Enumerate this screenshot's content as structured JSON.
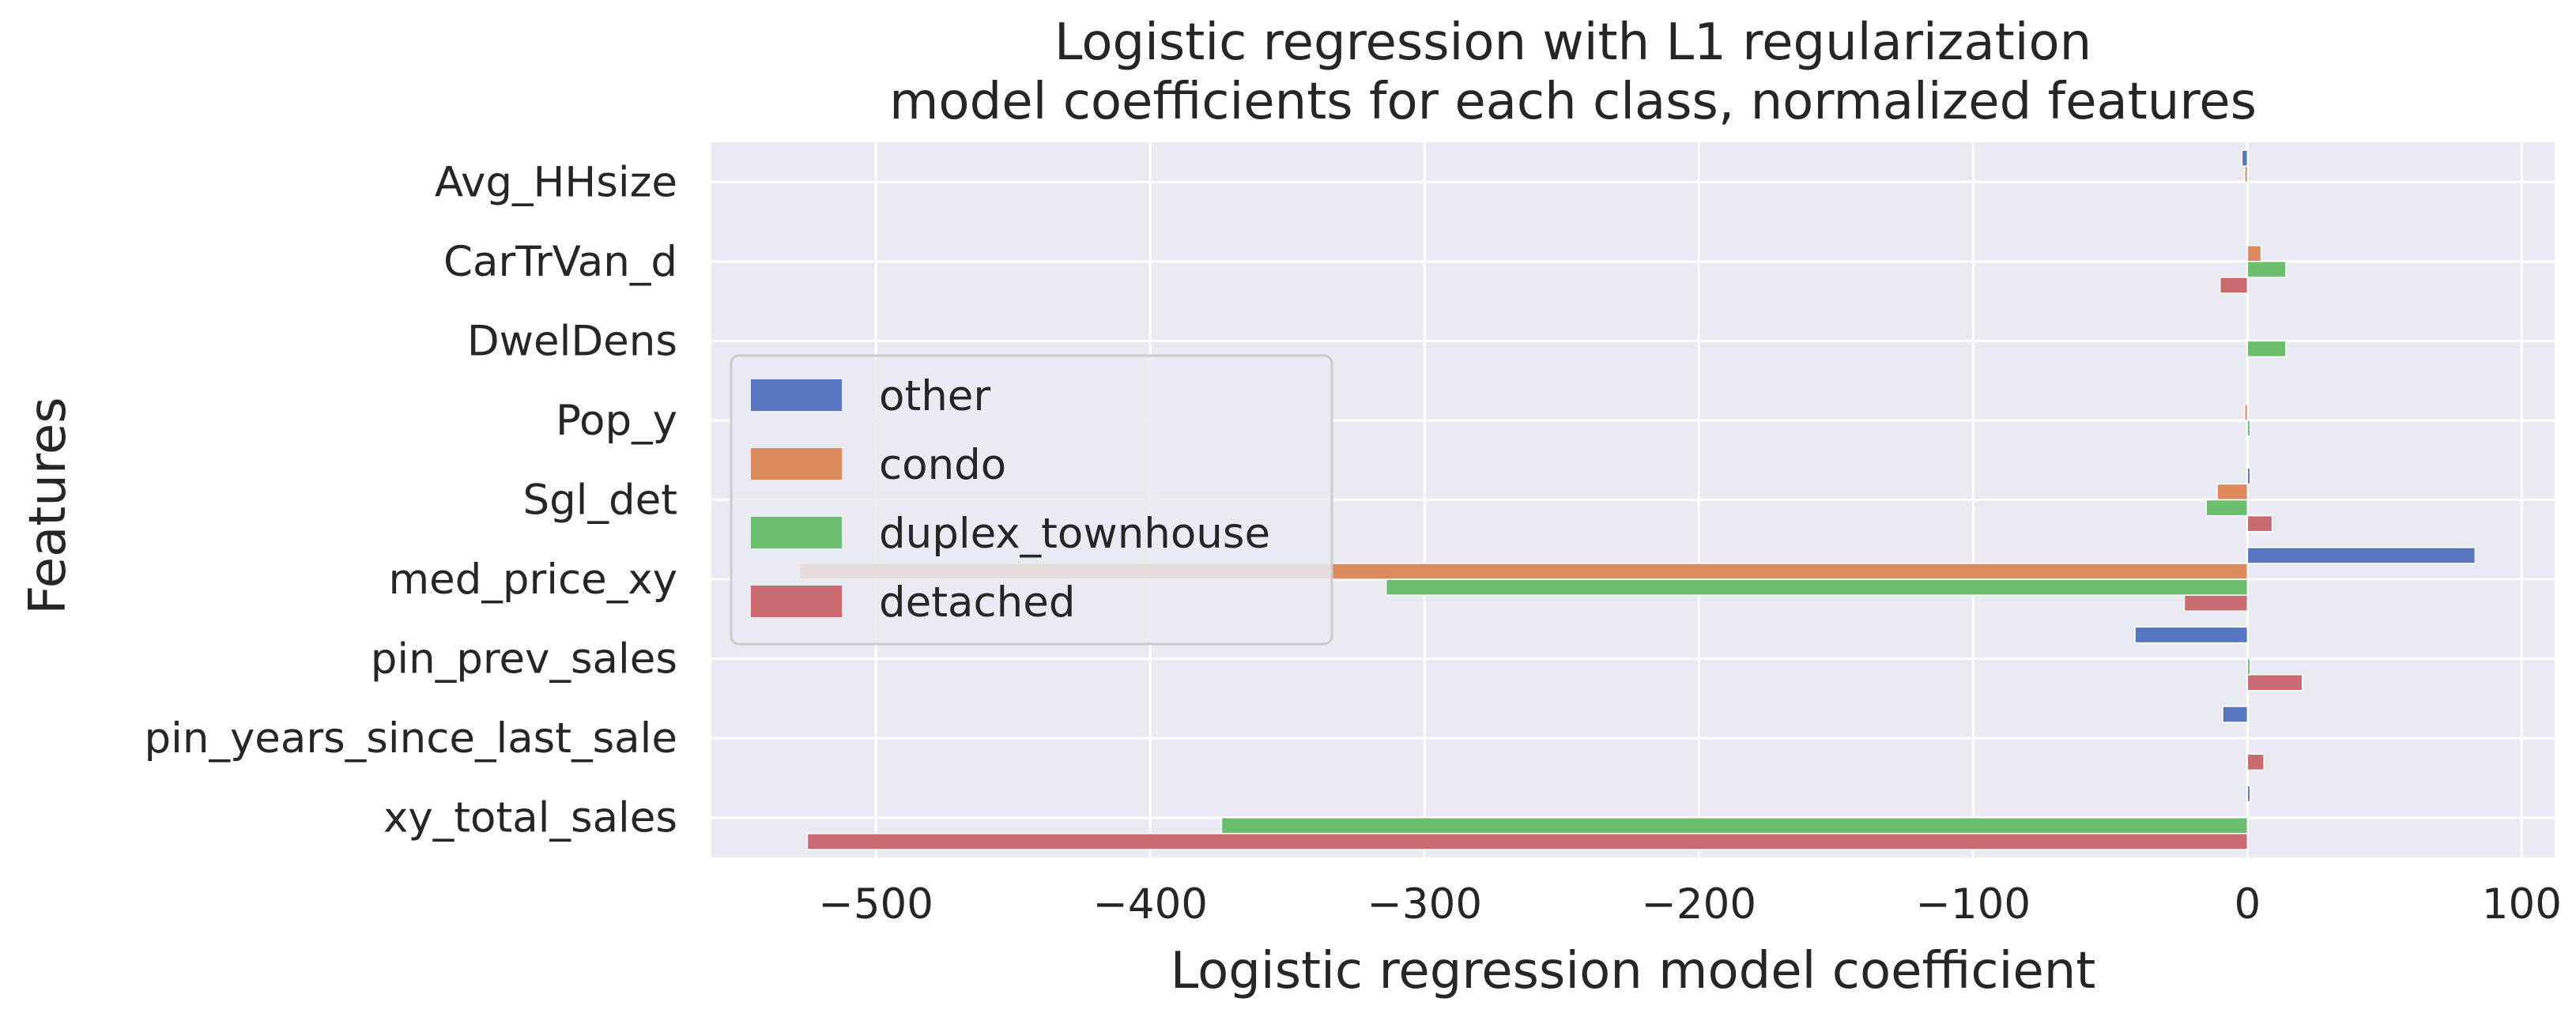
{
  "chart_data": {
    "type": "bar",
    "orientation": "horizontal",
    "title": "Logistic regression with L1 regularization",
    "subtitle": "model coefficients for each class, normalized features",
    "xlabel": "Logistic regression model coefficient",
    "ylabel": "Features",
    "xlim": [
      -560,
      112
    ],
    "xticks": [
      -500,
      -400,
      -300,
      -200,
      -100,
      0,
      100
    ],
    "xtick_labels": [
      "−500",
      "−400",
      "−300",
      "−200",
      "−100",
      "0",
      "100"
    ],
    "grid": true,
    "legend_position": "center-left",
    "categories": [
      "Avg_HHsize",
      "CarTrVan_d",
      "DwelDens",
      "Pop_y",
      "Sgl_det",
      "med_price_xy",
      "pin_prev_sales",
      "pin_years_since_last_sale",
      "xy_total_sales"
    ],
    "series": [
      {
        "name": "other",
        "color": "#5875c0",
        "values": [
          -2,
          0,
          0,
          0,
          1,
          83,
          -41,
          -9,
          1
        ]
      },
      {
        "name": "condo",
        "color": "#dd8a5e",
        "values": [
          -1,
          5,
          0,
          -1,
          -11,
          -528,
          0,
          0,
          0
        ]
      },
      {
        "name": "duplex_townhouse",
        "color": "#6cbd6e",
        "values": [
          0,
          14,
          14,
          1,
          -15,
          -314,
          1,
          0,
          -374
        ]
      },
      {
        "name": "detached",
        "color": "#c96b6f",
        "values": [
          0,
          -10,
          0,
          0,
          9,
          -23,
          20,
          6,
          -525
        ]
      }
    ],
    "style": {
      "plot_background": "#eaeaf2",
      "grid_color": "#ffffff",
      "text_color": "#262626"
    }
  }
}
